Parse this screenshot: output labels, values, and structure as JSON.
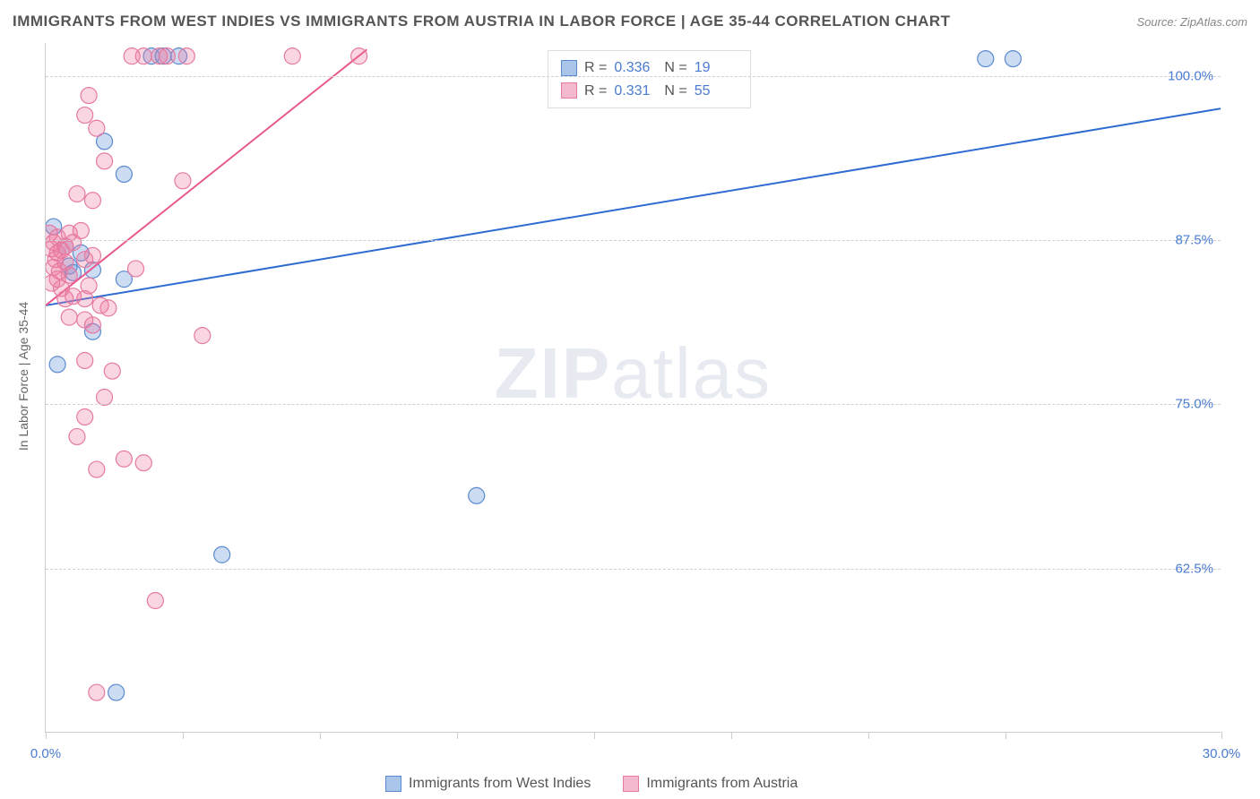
{
  "title": "IMMIGRANTS FROM WEST INDIES VS IMMIGRANTS FROM AUSTRIA IN LABOR FORCE | AGE 35-44 CORRELATION CHART",
  "source": "Source: ZipAtlas.com",
  "watermark_bold": "ZIP",
  "watermark_light": "atlas",
  "y_axis_label": "In Labor Force | Age 35-44",
  "chart": {
    "type": "scatter",
    "xlim": [
      0,
      30
    ],
    "ylim": [
      50,
      102.5
    ],
    "y_ticks": [
      62.5,
      75.0,
      87.5,
      100.0
    ],
    "y_tick_labels": [
      "62.5%",
      "75.0%",
      "87.5%",
      "100.0%"
    ],
    "x_ticks": [
      0,
      3.5,
      7,
      10.5,
      14,
      17.5,
      21,
      24.5,
      30
    ],
    "x_tick_labels_show": {
      "0": "0.0%",
      "30": "30.0%"
    },
    "background_color": "#ffffff",
    "grid_color": "#d0d0d0",
    "series": [
      {
        "name": "Immigrants from West Indies",
        "color_fill": "rgba(106,154,222,0.35)",
        "color_stroke": "#5a8ad0",
        "swatch_fill": "#a9c5ea",
        "swatch_border": "#5a8ad0",
        "marker_radius": 9,
        "r_value": "0.336",
        "n_value": "19",
        "trend": {
          "x1": 0,
          "y1": 82.5,
          "x2": 30,
          "y2": 97.5,
          "color": "#2e6cd1",
          "width": 2
        },
        "points": [
          [
            0.2,
            88.5
          ],
          [
            0.5,
            87.0
          ],
          [
            0.9,
            86.5
          ],
          [
            0.6,
            85.5
          ],
          [
            0.7,
            85.0
          ],
          [
            2.0,
            92.5
          ],
          [
            2.0,
            84.5
          ],
          [
            1.2,
            80.5
          ],
          [
            0.3,
            78.0
          ],
          [
            1.5,
            95.0
          ],
          [
            1.2,
            85.2
          ],
          [
            4.5,
            63.5
          ],
          [
            11.0,
            68.0
          ],
          [
            24.0,
            101.3
          ],
          [
            24.7,
            101.3
          ],
          [
            1.8,
            53.0
          ],
          [
            2.7,
            101.5
          ],
          [
            3.4,
            101.5
          ],
          [
            3.0,
            101.5
          ]
        ]
      },
      {
        "name": "Immigrants from Austria",
        "color_fill": "rgba(238,120,160,0.30)",
        "color_stroke": "#e67aa0",
        "swatch_fill": "#f4b9ce",
        "swatch_border": "#e67aa0",
        "marker_radius": 9,
        "r_value": "0.331",
        "n_value": "55",
        "trend": {
          "x1": 0,
          "y1": 82.5,
          "x2": 8.2,
          "y2": 102.0,
          "color": "#e85a8f",
          "width": 2
        },
        "points": [
          [
            0.1,
            88.0
          ],
          [
            0.2,
            87.3
          ],
          [
            0.15,
            86.8
          ],
          [
            0.3,
            86.5
          ],
          [
            0.25,
            86.0
          ],
          [
            0.2,
            85.4
          ],
          [
            0.35,
            85.1
          ],
          [
            0.3,
            84.5
          ],
          [
            0.15,
            84.2
          ],
          [
            0.4,
            83.8
          ],
          [
            0.5,
            83.0
          ],
          [
            0.7,
            83.2
          ],
          [
            1.0,
            83.0
          ],
          [
            1.4,
            82.5
          ],
          [
            1.6,
            82.3
          ],
          [
            0.6,
            81.6
          ],
          [
            1.0,
            81.4
          ],
          [
            1.2,
            81.0
          ],
          [
            0.3,
            87.7
          ],
          [
            0.5,
            87.0
          ],
          [
            1.2,
            90.5
          ],
          [
            0.8,
            91.0
          ],
          [
            1.5,
            93.5
          ],
          [
            1.3,
            96.0
          ],
          [
            1.0,
            97.0
          ],
          [
            1.1,
            98.5
          ],
          [
            3.5,
            92.0
          ],
          [
            1.5,
            75.5
          ],
          [
            1.0,
            74.0
          ],
          [
            0.8,
            72.5
          ],
          [
            2.0,
            70.8
          ],
          [
            1.3,
            70.0
          ],
          [
            2.5,
            70.5
          ],
          [
            1.7,
            77.5
          ],
          [
            1.0,
            78.3
          ],
          [
            4.0,
            80.2
          ],
          [
            2.3,
            85.3
          ],
          [
            2.2,
            101.5
          ],
          [
            2.5,
            101.5
          ],
          [
            2.9,
            101.5
          ],
          [
            3.1,
            101.5
          ],
          [
            3.6,
            101.5
          ],
          [
            6.3,
            101.5
          ],
          [
            8.0,
            101.5
          ],
          [
            1.0,
            86.0
          ],
          [
            1.2,
            86.3
          ],
          [
            0.6,
            88.0
          ],
          [
            2.8,
            60.0
          ],
          [
            1.3,
            53.0
          ],
          [
            0.5,
            85.8
          ],
          [
            0.4,
            86.7
          ],
          [
            0.7,
            87.3
          ],
          [
            0.9,
            88.2
          ],
          [
            0.6,
            84.8
          ],
          [
            1.1,
            84.0
          ]
        ]
      }
    ]
  },
  "legend": {
    "series1_label": "Immigrants from West Indies",
    "series2_label": "Immigrants from Austria"
  },
  "stats_labels": {
    "r": "R =",
    "n": "N ="
  }
}
